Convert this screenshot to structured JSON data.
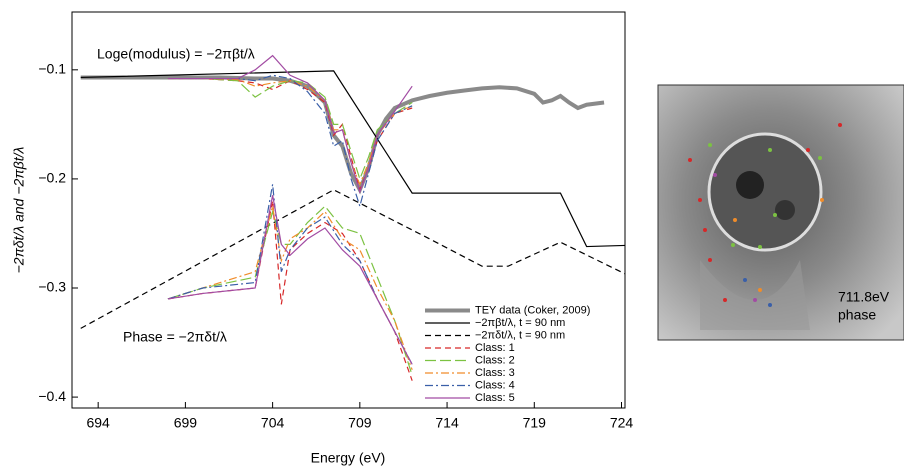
{
  "chart_data": {
    "type": "line",
    "x_label": "Energy (eV)",
    "y_label": "−2πδt/λ and −2πβt/λ",
    "annotations": [
      "Loge(modulus) = −2πβt/λ",
      "Phase = −2πδt/λ"
    ],
    "xlim": [
      692.5,
      724.2
    ],
    "ylim": [
      -0.41,
      -0.047
    ],
    "xticks": [
      694,
      699,
      704,
      709,
      714,
      719,
      724
    ],
    "yticks": [
      {
        "value": -0.1,
        "label": "−0.1"
      },
      {
        "value": -0.2,
        "label": "−0.2"
      },
      {
        "value": -0.3,
        "label": "−0.3"
      },
      {
        "value": -0.4,
        "label": "−0.4"
      }
    ],
    "legend": "lower right",
    "series": [
      {
        "name": "TEY data (Coker, 2009)",
        "color": "#8a8a8a",
        "style": "thick",
        "x": [
          693,
          695,
          698,
          701,
          703,
          704,
          705,
          706,
          707,
          707.5,
          708,
          708.5,
          709,
          709.5,
          710,
          710.5,
          711,
          712,
          713,
          714,
          715,
          716,
          717,
          718,
          719,
          719.5,
          720,
          720.5,
          721,
          721.5,
          722,
          723
        ],
        "values": [
          -0.107,
          -0.107,
          -0.107,
          -0.107,
          -0.108,
          -0.108,
          -0.11,
          -0.115,
          -0.13,
          -0.16,
          -0.17,
          -0.195,
          -0.21,
          -0.19,
          -0.16,
          -0.145,
          -0.135,
          -0.128,
          -0.124,
          -0.121,
          -0.119,
          -0.117,
          -0.116,
          -0.117,
          -0.122,
          -0.13,
          -0.128,
          -0.124,
          -0.13,
          -0.135,
          -0.132,
          -0.13
        ]
      },
      {
        "name": "−2πβt/λ, t = 90 nm",
        "color": "#000000",
        "style": "solid",
        "x": [
          693,
          707.5,
          712,
          720.5,
          722,
          724.2
        ],
        "values": [
          -0.107,
          -0.101,
          -0.213,
          -0.213,
          -0.262,
          -0.261
        ]
      },
      {
        "name": "−2πδt/λ, t = 90 nm",
        "color": "#000000",
        "style": "dashed",
        "x": [
          693,
          707.5,
          713,
          716,
          717.5,
          720.5,
          724.2
        ],
        "values": [
          -0.337,
          -0.21,
          -0.255,
          -0.28,
          -0.28,
          -0.258,
          -0.287
        ]
      },
      {
        "name": "Class: 1",
        "color": "#d62728",
        "style": "dashed",
        "x": [
          698,
          700,
          702,
          703,
          704,
          705,
          706,
          707,
          707.5,
          708,
          708.5,
          709,
          709.5,
          710,
          711,
          712,
          null,
          698,
          700,
          703,
          704,
          704.5,
          705,
          706,
          707,
          708,
          709,
          710,
          711,
          712
        ],
        "values": [
          -0.108,
          -0.108,
          -0.11,
          -0.112,
          -0.118,
          -0.11,
          -0.118,
          -0.13,
          -0.16,
          -0.15,
          -0.18,
          -0.21,
          -0.19,
          -0.165,
          -0.14,
          -0.135,
          null,
          -0.31,
          -0.305,
          -0.3,
          -0.22,
          -0.315,
          -0.265,
          -0.25,
          -0.24,
          -0.25,
          -0.275,
          -0.31,
          -0.34,
          -0.385
        ]
      },
      {
        "name": "Class: 2",
        "color": "#7cc242",
        "style": "longdash",
        "x": [
          698,
          700,
          702,
          703,
          704,
          705,
          706,
          707,
          707.5,
          708,
          708.5,
          709,
          709.5,
          710,
          711,
          712,
          null,
          698,
          700,
          703,
          704,
          704.5,
          705,
          706,
          707,
          708,
          709,
          710,
          711,
          712
        ],
        "values": [
          -0.108,
          -0.108,
          -0.11,
          -0.125,
          -0.115,
          -0.11,
          -0.112,
          -0.125,
          -0.15,
          -0.15,
          -0.175,
          -0.2,
          -0.18,
          -0.155,
          -0.14,
          -0.13,
          null,
          -0.31,
          -0.3,
          -0.29,
          -0.23,
          -0.26,
          -0.26,
          -0.24,
          -0.225,
          -0.245,
          -0.25,
          -0.29,
          -0.33,
          -0.38
        ]
      },
      {
        "name": "Class: 3",
        "color": "#f08c2a",
        "style": "dashdot",
        "x": [
          698,
          700,
          702,
          703,
          704,
          705,
          706,
          707,
          707.5,
          708,
          708.5,
          709,
          709.5,
          710,
          711,
          712,
          null,
          698,
          700,
          703,
          704,
          704.5,
          705,
          706,
          707,
          708,
          709,
          710,
          711,
          712
        ],
        "values": [
          -0.108,
          -0.108,
          -0.109,
          -0.115,
          -0.112,
          -0.11,
          -0.115,
          -0.128,
          -0.155,
          -0.155,
          -0.185,
          -0.205,
          -0.185,
          -0.16,
          -0.14,
          -0.133,
          null,
          -0.31,
          -0.3,
          -0.285,
          -0.225,
          -0.275,
          -0.255,
          -0.245,
          -0.23,
          -0.255,
          -0.265,
          -0.3,
          -0.33,
          -0.375
        ]
      },
      {
        "name": "Class: 4",
        "color": "#3a5fa8",
        "style": "dashdot",
        "x": [
          698,
          700,
          702,
          703,
          704,
          705,
          706,
          707,
          707.5,
          708,
          708.5,
          709,
          709.5,
          710,
          711,
          712,
          null,
          698,
          700,
          703,
          704,
          704.5,
          705,
          706,
          707,
          708,
          709,
          710,
          711,
          712
        ],
        "values": [
          -0.108,
          -0.108,
          -0.108,
          -0.11,
          -0.105,
          -0.108,
          -0.12,
          -0.14,
          -0.17,
          -0.165,
          -0.2,
          -0.225,
          -0.195,
          -0.165,
          -0.14,
          -0.133,
          null,
          -0.31,
          -0.3,
          -0.295,
          -0.205,
          -0.285,
          -0.265,
          -0.245,
          -0.235,
          -0.26,
          -0.275,
          -0.31,
          -0.34,
          -0.37
        ]
      },
      {
        "name": "Class: 5",
        "color": "#a24ca3",
        "style": "solid",
        "x": [
          698,
          700,
          702,
          703,
          704,
          705,
          706,
          707,
          707.5,
          708,
          708.5,
          709,
          709.5,
          710,
          711,
          712,
          null,
          698,
          700,
          703,
          704,
          704.5,
          705,
          706,
          707,
          708,
          709,
          710,
          711,
          712
        ],
        "values": [
          -0.108,
          -0.108,
          -0.108,
          -0.1,
          -0.087,
          -0.105,
          -0.112,
          -0.128,
          -0.158,
          -0.155,
          -0.185,
          -0.212,
          -0.19,
          -0.16,
          -0.138,
          -0.115,
          null,
          -0.31,
          -0.305,
          -0.3,
          -0.215,
          -0.26,
          -0.27,
          -0.255,
          -0.245,
          -0.265,
          -0.28,
          -0.31,
          -0.34,
          -0.37
        ]
      }
    ]
  },
  "image": {
    "label": [
      "711.8eV",
      "phase"
    ]
  }
}
